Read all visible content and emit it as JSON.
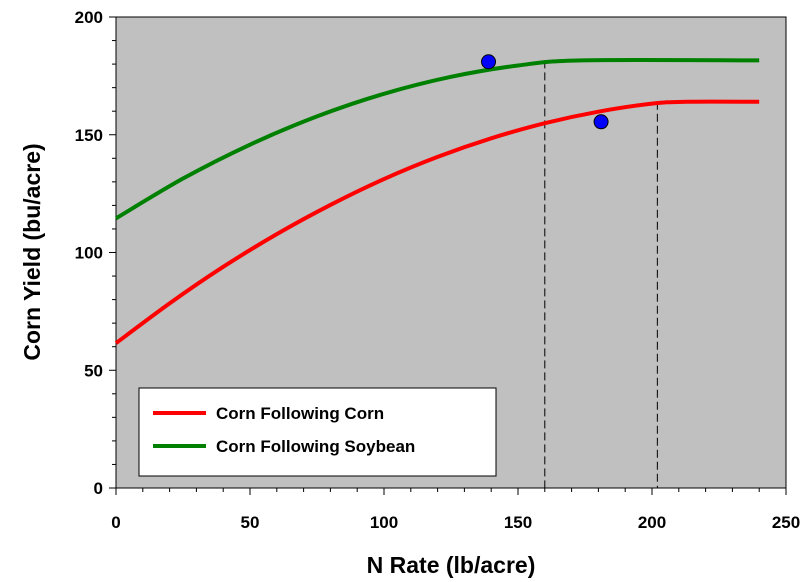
{
  "chart_data": {
    "type": "line",
    "xlabel": "N Rate (lb/acre)",
    "ylabel": "Corn Yield (bu/acre)",
    "xlim": [
      0,
      250
    ],
    "ylim": [
      0,
      200
    ],
    "x_ticks": [
      "0",
      "50",
      "100",
      "150",
      "200",
      "250"
    ],
    "y_ticks": [
      "0",
      "50",
      "100",
      "150",
      "200"
    ],
    "grid": false,
    "background_color": "#c0c0c0",
    "legend_position": "bottom-left",
    "series": [
      {
        "name": "Corn Following Corn",
        "color": "#ff0000",
        "x": [
          0,
          20,
          40,
          60,
          80,
          100,
          120,
          140,
          160,
          180,
          200,
          213,
          240
        ],
        "y": [
          61.5,
          78.4,
          93.9,
          107.8,
          120.2,
          131.2,
          140.6,
          148.5,
          154.9,
          159.8,
          163.2,
          164.0,
          164.0
        ],
        "marker": {
          "x": 181,
          "y": 155.5,
          "color": "#0000ff"
        },
        "reference_x": 202
      },
      {
        "name": "Corn Following Soybean",
        "color": "#008000",
        "x": [
          0,
          25,
          50,
          75,
          100,
          125,
          150,
          174,
          240
        ],
        "y": [
          114.5,
          131.4,
          145.8,
          157.8,
          167.4,
          174.6,
          179.4,
          181.6,
          181.6
        ],
        "marker": {
          "x": 139,
          "y": 181,
          "color": "#0000ff"
        },
        "reference_x": 160
      }
    ]
  }
}
